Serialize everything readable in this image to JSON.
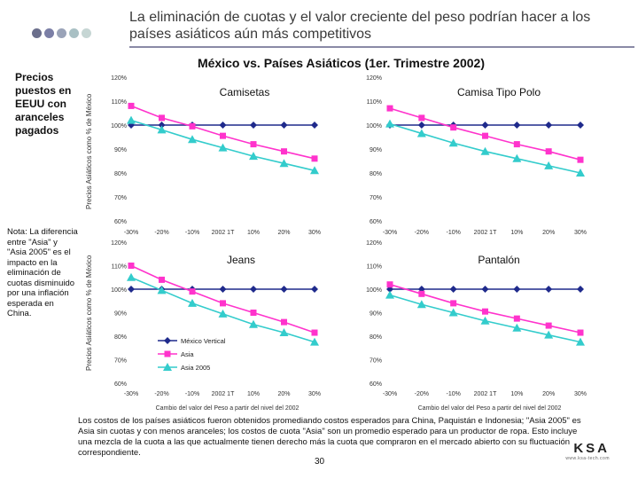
{
  "header": {
    "title": "La eliminación de cuotas y el valor creciente del peso podrían hacer a los países asiáticos aún más competitivos",
    "subtitle": "México vs. Países Asiáticos (1er. Trimestre 2002)",
    "dot_colors": [
      "#6b6f8c",
      "#7b7fa6",
      "#9aa3b8",
      "#a9c0c4",
      "#c6d6d4"
    ]
  },
  "left_label": "Precios puestos en EEUU con aranceles pagados",
  "y_axis_label": "Precios Asiáticos como % de México",
  "note": "Nota: La diferencia entre \"Asia\" y \"Asia 2005\" es el impacto en la eliminación de cuotas disminuido por una inflación esperada en China.",
  "footer_text": "Los costos de los países asiáticos fueron obtenidos promediando costos esperados para China, Paquistán e Indonesia; \"Asia 2005\" es Asia sin cuotas y con menos aranceles; los costos de cuota \"Asia\" son un promedio esperado para un productor de ropa. Esto incluye una mezcla de la cuota a las que actualmente tienen derecho más la cuota que compraron en el mercado abierto con su fluctuación correspondiente.",
  "page_number": "30",
  "logo": {
    "main": "KSA",
    "sub": "www.ksa-tech.com"
  },
  "legend": {
    "items": [
      {
        "label": "México Vertical",
        "color": "#1f2a8c",
        "marker": "diamond"
      },
      {
        "label": "Asia",
        "color": "#ff33cc",
        "marker": "square"
      },
      {
        "label": "Asia 2005",
        "color": "#33cccc",
        "marker": "triangle"
      }
    ]
  },
  "colors": {
    "mexico": "#1f2a8c",
    "asia": "#ff33cc",
    "asia2005": "#33cccc"
  },
  "chart_data": [
    {
      "type": "line",
      "title": "Camisetas",
      "categories": [
        "-30%",
        "-20%",
        "-10%",
        "2002 1T",
        "10%",
        "20%",
        "30%"
      ],
      "ylim": [
        60,
        120
      ],
      "yticks": [
        "60%",
        "70%",
        "80%",
        "90%",
        "100%",
        "110%",
        "120%"
      ],
      "series": [
        {
          "name": "México Vertical",
          "values": [
            100,
            100,
            100,
            100,
            100,
            100,
            100
          ]
        },
        {
          "name": "Asia",
          "values": [
            108,
            103,
            99.5,
            95.5,
            92,
            89,
            86
          ]
        },
        {
          "name": "Asia 2005",
          "values": [
            102,
            98,
            94,
            90.5,
            87,
            84,
            81
          ]
        }
      ]
    },
    {
      "type": "line",
      "title": "Camisa Tipo Polo",
      "categories": [
        "-30%",
        "-20%",
        "-10%",
        "2002 1T",
        "10%",
        "20%",
        "30%"
      ],
      "ylim": [
        60,
        120
      ],
      "yticks": [
        "60%",
        "70%",
        "80%",
        "90%",
        "100%",
        "110%",
        "120%"
      ],
      "series": [
        {
          "name": "México Vertical",
          "values": [
            100,
            100,
            100,
            100,
            100,
            100,
            100
          ]
        },
        {
          "name": "Asia",
          "values": [
            107,
            103,
            99,
            95.5,
            92,
            89,
            85.5
          ]
        },
        {
          "name": "Asia 2005",
          "values": [
            100.5,
            96.5,
            92.5,
            89,
            86,
            83,
            80
          ]
        }
      ]
    },
    {
      "type": "line",
      "title": "Jeans",
      "xlabel": "Cambio del valor del Peso a partir del nivel del 2002",
      "categories": [
        "-30%",
        "-20%",
        "-10%",
        "2002 1T",
        "10%",
        "20%",
        "30%"
      ],
      "ylim": [
        60,
        120
      ],
      "yticks": [
        "60%",
        "70%",
        "80%",
        "90%",
        "100%",
        "110%",
        "120%"
      ],
      "series": [
        {
          "name": "México Vertical",
          "values": [
            100,
            100,
            100,
            100,
            100,
            100,
            100
          ]
        },
        {
          "name": "Asia",
          "values": [
            110,
            104,
            99,
            94,
            90,
            86,
            81.5
          ]
        },
        {
          "name": "Asia 2005",
          "values": [
            105,
            99.5,
            94,
            89.5,
            85,
            81.5,
            77.5
          ]
        }
      ]
    },
    {
      "type": "line",
      "title": "Pantalón",
      "xlabel": "Cambio del valor del Peso a partir del nivel del 2002",
      "categories": [
        "-30%",
        "-20%",
        "-10%",
        "2002 1T",
        "10%",
        "20%",
        "30%"
      ],
      "ylim": [
        60,
        120
      ],
      "yticks": [
        "60%",
        "70%",
        "80%",
        "90%",
        "100%",
        "110%",
        "120%"
      ],
      "series": [
        {
          "name": "México Vertical",
          "values": [
            100,
            100,
            100,
            100,
            100,
            100,
            100
          ]
        },
        {
          "name": "Asia",
          "values": [
            102,
            98,
            94,
            90.5,
            87.5,
            84.5,
            81.5
          ]
        },
        {
          "name": "Asia 2005",
          "values": [
            97.5,
            93.5,
            90,
            86.5,
            83.5,
            80.5,
            77.5
          ]
        }
      ]
    }
  ]
}
